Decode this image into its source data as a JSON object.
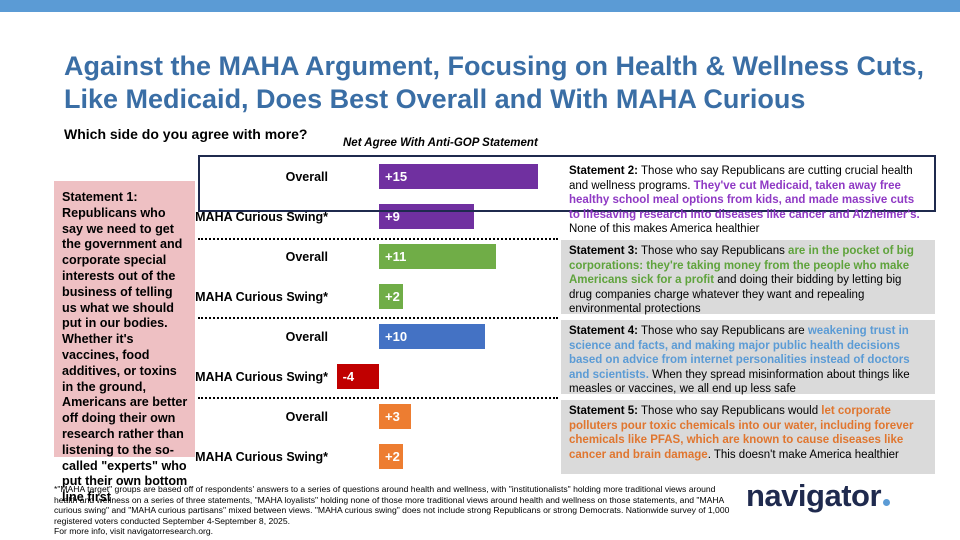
{
  "title": "Against the MAHA Argument, Focusing on Health & Wellness Cuts, Like Medicaid, Does Best Overall and With MAHA Curious",
  "question": "Which side do you agree with more?",
  "statement1": {
    "heading": "Statement 1:",
    "body": "Republicans who say we need to get the government and corporate special interests out of the business of telling us what we should put in our bodies. Whether it's vaccines, food additives, or toxins in the ground, Americans are better off doing their own research rather than listening to the so-called \"experts\" who put their own bottom line first"
  },
  "statements": [
    {
      "heading": "Statement 2:",
      "pre": " Those who say Republicans are cutting crucial health and wellness programs. ",
      "highlight": "They've cut Medicaid, taken away free healthy school meal options from kids, and made massive cuts to lifesaving research into diseases like cancer and Alzheimer's.",
      "post": " None of this makes America healthier"
    },
    {
      "heading": "Statement 3:",
      "pre": " Those who say Republicans ",
      "highlight": "are in the pocket of big corporations: they're taking money from the people who make Americans sick for a profit",
      "post": " and doing their bidding by letting big drug companies charge whatever they want and repealing environmental protections"
    },
    {
      "heading": "Statement 4:",
      "pre": " Those who say Republicans are ",
      "highlight": "weakening trust in science and facts, and making major public health decisions based on advice from internet personalities instead of doctors and scientists.",
      "post": " When they spread misinformation about things like measles or vaccines, we all end up less safe"
    },
    {
      "heading": "Statement 5:",
      "pre": " Those who say Republicans would ",
      "highlight": "let corporate polluters pour toxic chemicals into our water, including forever chemicals like PFAS, which are known to cause diseases like cancer and brain damage",
      "post": ". This doesn't make America healthier"
    }
  ],
  "chart_data": {
    "type": "bar",
    "orientation": "horizontal",
    "title": "Net Agree With Anti-GOP Statement",
    "categories": [
      "Overall",
      "MAHA Curious Swing*",
      "Overall",
      "MAHA Curious Swing*",
      "Overall",
      "MAHA Curious Swing*",
      "Overall",
      "MAHA Curious Swing*"
    ],
    "groups": [
      "Statement 2",
      "Statement 3",
      "Statement 4",
      "Statement 5"
    ],
    "values": [
      15,
      9,
      11,
      2,
      10,
      -4,
      3,
      2
    ],
    "labels": [
      "+15",
      "+9",
      "+11",
      "+2",
      "+10",
      "-4",
      "+3",
      "+2"
    ],
    "colors": [
      "#7030a0",
      "#7030a0",
      "#70ad47",
      "#70ad47",
      "#4472c4",
      "#c00000",
      "#ed7d31",
      "#ed7d31"
    ],
    "xlim": [
      -5,
      16
    ]
  },
  "footnote": "*\"MAHA target\" groups are based off of respondents' answers to a series of questions around health and wellness, with \"institutionalists\" holding more traditional views around health and wellness on a series of three statements, \"MAHA loyalists\" holding none of those more traditional views around health and wellness on those statements, and \"MAHA curious swing\" and \"MAHA curious partisans\" mixed between views. \"MAHA curious swing\" does not include strong Republicans or strong Democrats. Nationwide survey of 1,000 registered voters conducted September 4-September 8, 2025.",
  "footnote_more": "For more info, visit navigatorresearch.org.",
  "logo": "navigator"
}
